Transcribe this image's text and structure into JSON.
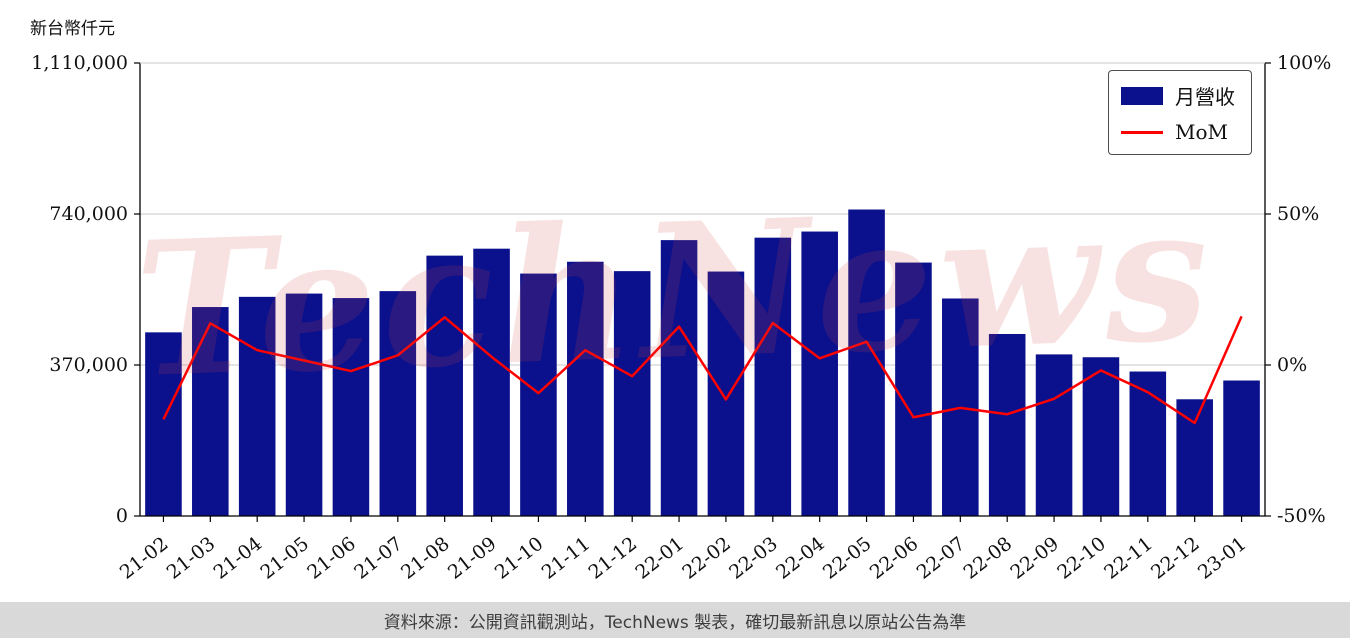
{
  "page": {
    "background": "#ffffff"
  },
  "watermark": {
    "text": "TechNews",
    "color": "#cd4b46"
  },
  "footer": {
    "text": "資料來源：公開資訊觀測站，TechNews 製表，確切最新訊息以原站公告為準"
  },
  "legend": {
    "items": [
      {
        "label": "月營收",
        "type": "bar",
        "color": "#0b108c"
      },
      {
        "label": "MoM",
        "type": "line",
        "color": "#ff0000"
      }
    ]
  },
  "chart_data": {
    "type": "bar+line",
    "title": "",
    "ylabel": "新台幣仟元",
    "categories": [
      "21-02",
      "21-03",
      "21-04",
      "21-05",
      "21-06",
      "21-07",
      "21-08",
      "21-09",
      "21-10",
      "21-11",
      "21-12",
      "22-01",
      "22-02",
      "22-03",
      "22-04",
      "22-05",
      "22-06",
      "22-07",
      "22-08",
      "22-09",
      "22-10",
      "22-11",
      "22-12",
      "23-01"
    ],
    "series": [
      {
        "name": "月營收",
        "type": "bar",
        "axis": "left",
        "color": "#0b108c",
        "values": [
          450000,
          512000,
          537000,
          545000,
          534000,
          551000,
          638000,
          655000,
          594000,
          623000,
          600000,
          676000,
          599000,
          682000,
          697000,
          751000,
          621000,
          533000,
          446000,
          396000,
          389000,
          354000,
          286000,
          332000
        ]
      },
      {
        "name": "MoM",
        "type": "line",
        "axis": "right",
        "color": "#ff0000",
        "values": [
          -18,
          13.8,
          4.9,
          1.5,
          -2,
          3.2,
          15.8,
          2.7,
          -9.3,
          4.9,
          -3.7,
          12.7,
          -11.4,
          13.9,
          2.2,
          7.7,
          -17.3,
          -14.2,
          -16.3,
          -11.2,
          -1.8,
          -9,
          -19.2,
          16.1
        ]
      }
    ],
    "left_axis": {
      "range": [
        0,
        1110000
      ],
      "ticks": [
        0,
        370000,
        740000,
        1110000
      ],
      "tick_labels": [
        "0",
        "370,000",
        "740,000",
        "1,110,000"
      ]
    },
    "right_axis": {
      "range": [
        -50,
        100
      ],
      "ticks": [
        -50,
        0,
        50,
        100
      ],
      "tick_labels": [
        "-50%",
        "0%",
        "50%",
        "100%"
      ]
    },
    "grid": true,
    "legend_position": "upper right"
  }
}
